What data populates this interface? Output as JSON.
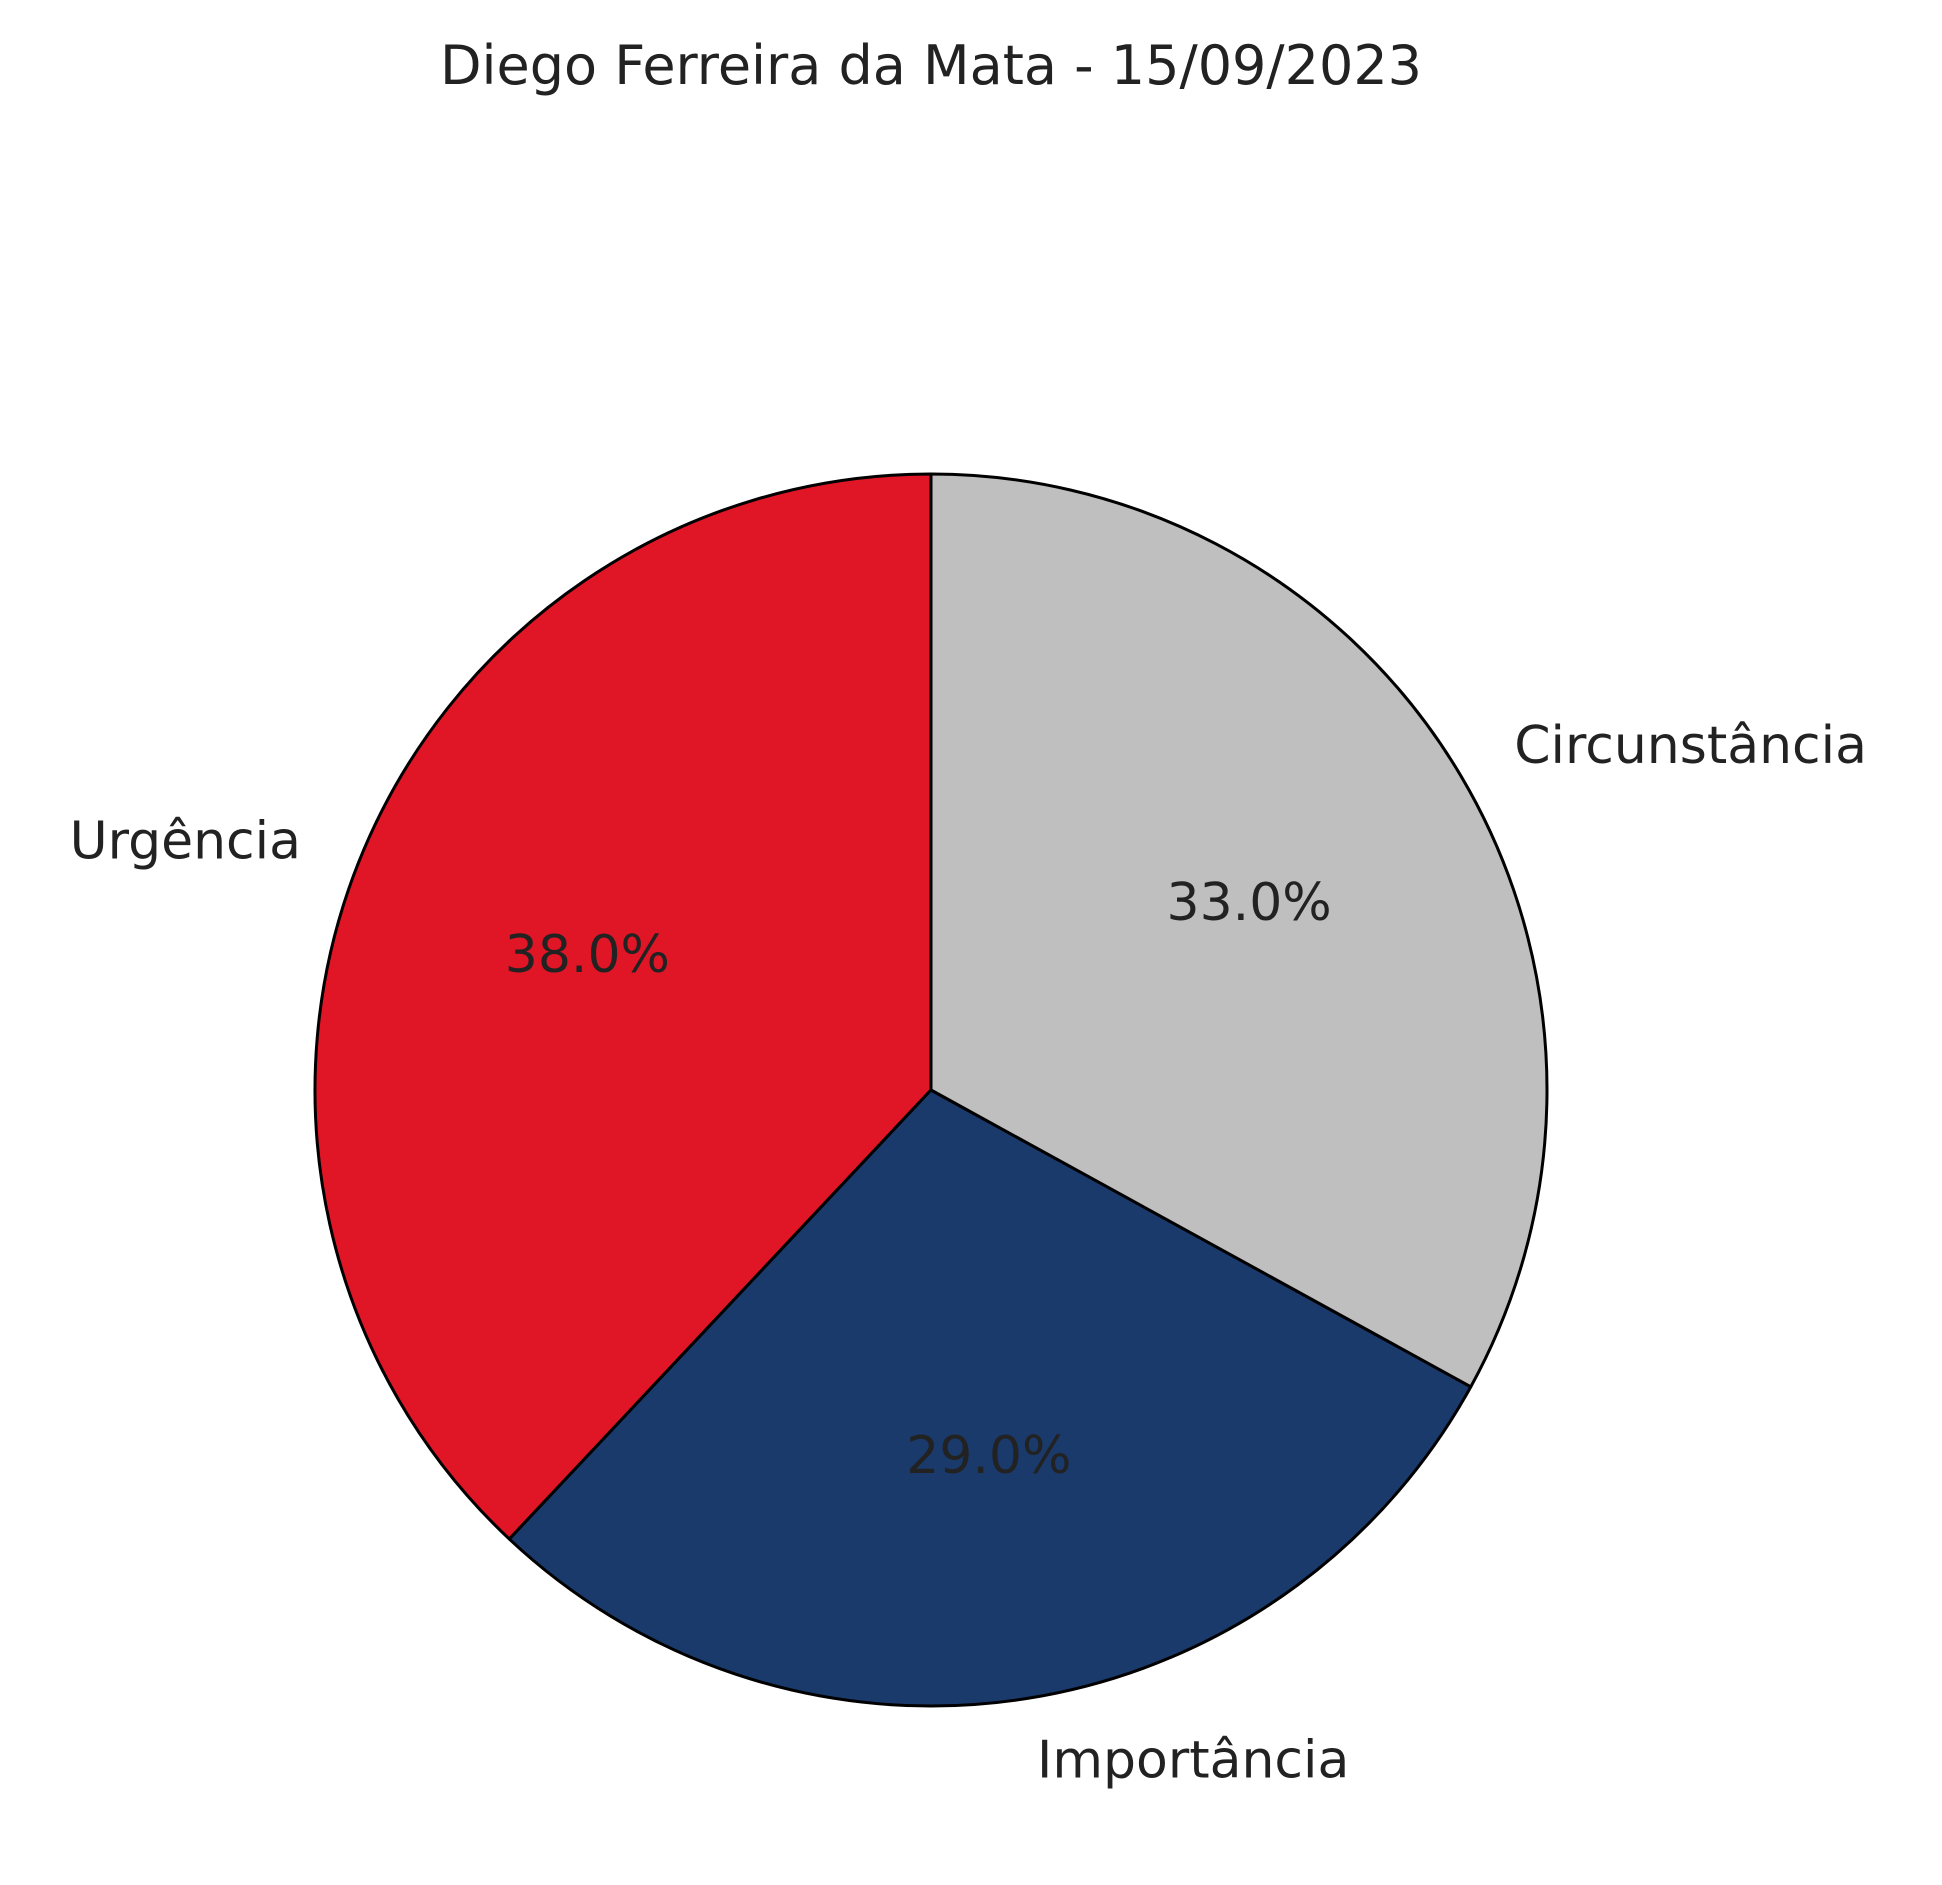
{
  "chart_data": {
    "type": "pie",
    "title": "Diego Ferreira da Mata - 15/09/2023",
    "categories": [
      "Urgência",
      "Importância",
      "Circunstância"
    ],
    "values": [
      38.0,
      29.0,
      33.0
    ],
    "percent_labels": [
      "38.0%",
      "29.0%",
      "33.0%"
    ],
    "colors": [
      "#e01626",
      "#1a3a6c",
      "#bebfbe"
    ],
    "start_angle_deg": 90,
    "direction": "counterclockwise",
    "legend": "none"
  }
}
